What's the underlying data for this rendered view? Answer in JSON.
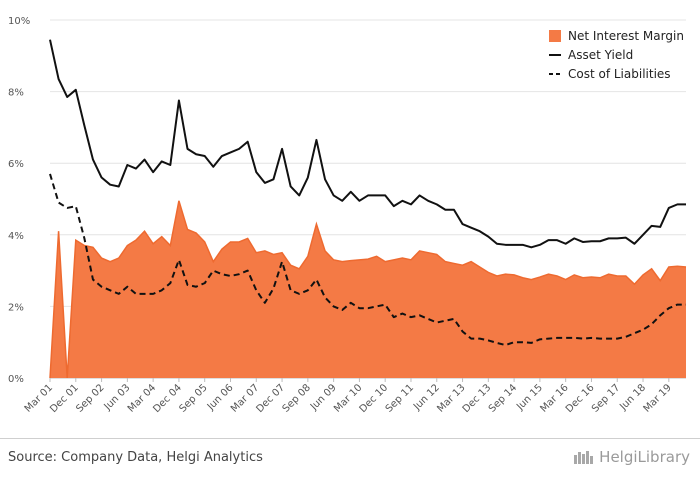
{
  "chart_data": {
    "type": "area",
    "x": [
      "Mar 01",
      "Jun 01",
      "Sep 01",
      "Dec 01",
      "Mar 02",
      "Jun 02",
      "Sep 02",
      "Dec 02",
      "Mar 03",
      "Jun 03",
      "Sep 03",
      "Dec 03",
      "Mar 04",
      "Jun 04",
      "Sep 04",
      "Dec 04",
      "Mar 05",
      "Jun 05",
      "Sep 05",
      "Dec 05",
      "Mar 06",
      "Jun 06",
      "Sep 06",
      "Dec 06",
      "Mar 07",
      "Jun 07",
      "Sep 07",
      "Dec 07",
      "Mar 08",
      "Jun 08",
      "Sep 08",
      "Dec 08",
      "Mar 09",
      "Jun 09",
      "Sep 09",
      "Dec 09",
      "Mar 10",
      "Jun 10",
      "Sep 10",
      "Dec 10",
      "Mar 11",
      "Jun 11",
      "Sep 11",
      "Dec 11",
      "Mar 12",
      "Jun 12",
      "Sep 12",
      "Dec 12",
      "Mar 13",
      "Jun 13",
      "Sep 13",
      "Dec 13",
      "Mar 14",
      "Jun 14",
      "Sep 14",
      "Dec 14",
      "Mar 15",
      "Jun 15",
      "Sep 15",
      "Dec 15",
      "Mar 16",
      "Jun 16",
      "Sep 16",
      "Dec 16",
      "Mar 17",
      "Jun 17",
      "Sep 17",
      "Dec 17",
      "Mar 18",
      "Jun 18",
      "Sep 18",
      "Dec 18",
      "Mar 19",
      "Jun 19",
      "Sep 19"
    ],
    "x_tick_labels": [
      "Mar 01",
      "Dec 01",
      "Sep 02",
      "Jun 03",
      "Mar 04",
      "Dec 04",
      "Sep 05",
      "Jun 06",
      "Mar 07",
      "Dec 07",
      "Sep 08",
      "Jun 09",
      "Mar 10",
      "Dec 10",
      "Sep 11",
      "Jun 12",
      "Mar 13",
      "Dec 13",
      "Sep 14",
      "Jun 15",
      "Mar 16",
      "Dec 16",
      "Sep 17",
      "Jun 18",
      "Mar 19"
    ],
    "y_ticks": [
      "0%",
      "2%",
      "4%",
      "6%",
      "8%",
      "10%"
    ],
    "ylim": [
      0,
      10
    ],
    "grid": true,
    "legend_position": "top-right",
    "series": [
      {
        "name": "Net Interest Margin",
        "style": "area",
        "color": "#f47a45",
        "values": [
          0.0,
          4.1,
          0.0,
          3.85,
          3.7,
          3.65,
          3.35,
          3.25,
          3.35,
          3.7,
          3.85,
          4.1,
          3.75,
          3.95,
          3.7,
          4.95,
          4.15,
          4.05,
          3.8,
          3.25,
          3.6,
          3.8,
          3.8,
          3.9,
          3.5,
          3.55,
          3.45,
          3.5,
          3.15,
          3.05,
          3.4,
          4.3,
          3.55,
          3.3,
          3.25,
          3.28,
          3.3,
          3.32,
          3.4,
          3.25,
          3.3,
          3.35,
          3.3,
          3.55,
          3.5,
          3.45,
          3.25,
          3.2,
          3.15,
          3.25,
          3.1,
          2.95,
          2.85,
          2.9,
          2.88,
          2.8,
          2.75,
          2.82,
          2.9,
          2.85,
          2.75,
          2.88,
          2.8,
          2.82,
          2.8,
          2.9,
          2.85,
          2.85,
          2.62,
          2.88,
          3.05,
          2.72,
          3.1,
          3.12,
          3.1
        ]
      },
      {
        "name": "Asset Yield",
        "style": "solid",
        "color": "#111111",
        "values": [
          9.45,
          8.35,
          7.85,
          8.05,
          7.05,
          6.1,
          5.6,
          5.4,
          5.35,
          5.95,
          5.85,
          6.1,
          5.75,
          6.05,
          5.95,
          7.75,
          6.4,
          6.25,
          6.2,
          5.9,
          6.2,
          6.3,
          6.4,
          6.6,
          5.75,
          5.45,
          5.55,
          6.4,
          5.35,
          5.1,
          5.6,
          6.65,
          5.55,
          5.1,
          4.95,
          5.2,
          4.95,
          5.1,
          5.1,
          5.1,
          4.8,
          4.95,
          4.85,
          5.1,
          4.95,
          4.85,
          4.7,
          4.7,
          4.3,
          4.2,
          4.1,
          3.95,
          3.75,
          3.72,
          3.72,
          3.72,
          3.65,
          3.72,
          3.85,
          3.85,
          3.75,
          3.9,
          3.8,
          3.82,
          3.82,
          3.9,
          3.9,
          3.92,
          3.75,
          4.0,
          4.25,
          4.22,
          4.75,
          4.85,
          4.85
        ]
      },
      {
        "name": "Cost of Liabilities",
        "style": "dashed",
        "color": "#111111",
        "values": [
          5.7,
          4.9,
          4.75,
          4.8,
          3.9,
          2.75,
          2.55,
          2.45,
          2.35,
          2.55,
          2.35,
          2.35,
          2.35,
          2.45,
          2.65,
          3.3,
          2.6,
          2.55,
          2.65,
          3.0,
          2.9,
          2.85,
          2.9,
          3.0,
          2.45,
          2.1,
          2.5,
          3.25,
          2.45,
          2.35,
          2.45,
          2.75,
          2.25,
          2.0,
          1.9,
          2.1,
          1.95,
          1.95,
          2.0,
          2.05,
          1.7,
          1.8,
          1.7,
          1.75,
          1.65,
          1.55,
          1.6,
          1.65,
          1.3,
          1.1,
          1.1,
          1.05,
          0.98,
          0.92,
          1.0,
          1.0,
          0.98,
          1.08,
          1.1,
          1.12,
          1.12,
          1.12,
          1.1,
          1.12,
          1.1,
          1.1,
          1.1,
          1.15,
          1.25,
          1.35,
          1.5,
          1.75,
          1.95,
          2.05,
          2.05
        ]
      }
    ]
  },
  "footer": {
    "source": "Source: Company Data, Helgi Analytics",
    "brand": "HelgiLibrary"
  }
}
